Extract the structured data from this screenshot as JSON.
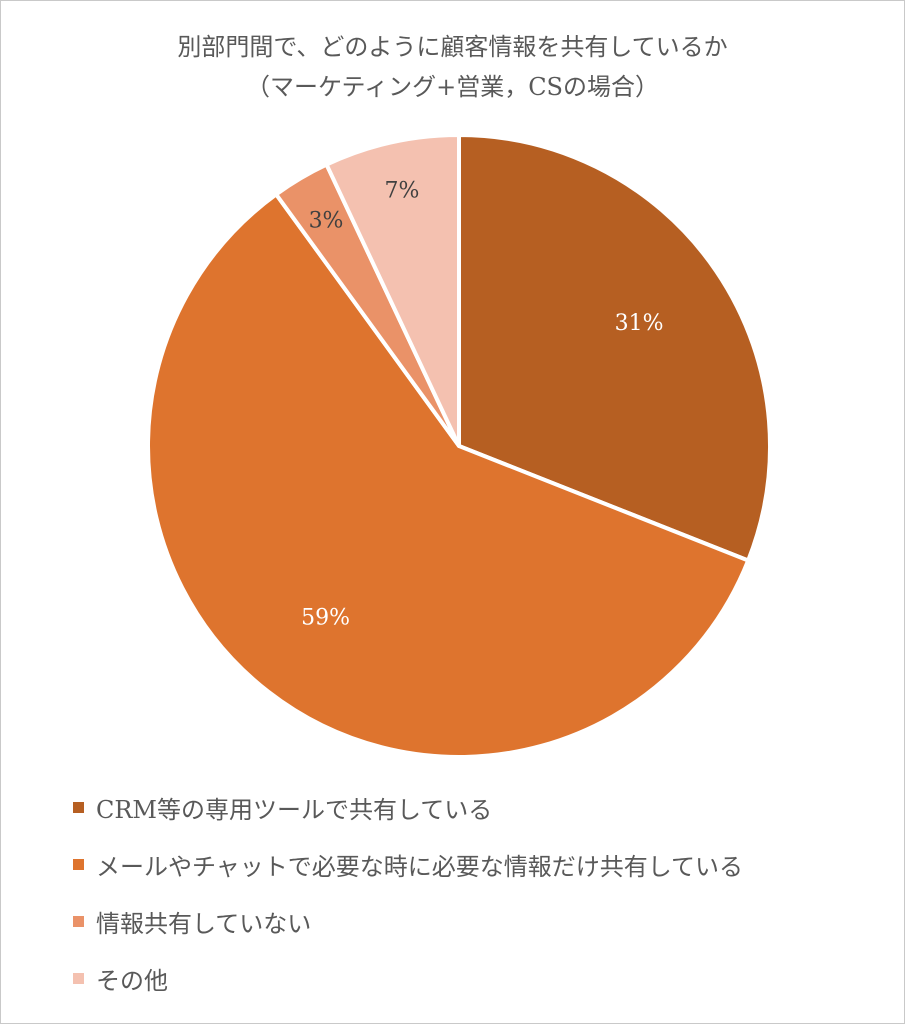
{
  "chart_data": {
    "type": "pie",
    "title": "別部門間で、どのように顧客情報を共有しているか",
    "subtitle": "（マーケティング+営業，CSの場合）",
    "legend_position": "bottom",
    "slices": [
      {
        "label": "CRM等の専用ツールで共有している",
        "value": 31,
        "display": "31%",
        "color": "#b65f22",
        "label_color": "#ffffff"
      },
      {
        "label": "メールやチャットで必要な時に必要な情報だけ共有している",
        "value": 59,
        "display": "59%",
        "color": "#de742e",
        "label_color": "#ffffff"
      },
      {
        "label": "情報共有していない",
        "value": 3,
        "display": "3%",
        "color": "#ea9268",
        "label_color": "#404040"
      },
      {
        "label": "その他",
        "value": 7,
        "display": "7%",
        "color": "#f4c1b0",
        "label_color": "#404040"
      }
    ]
  }
}
